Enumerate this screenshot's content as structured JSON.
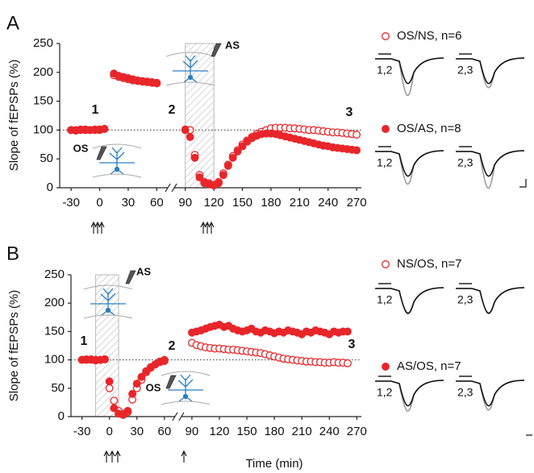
{
  "chart_data": [
    {
      "type": "scatter",
      "panel": "A",
      "ylabel": "Slope of fEPSPs (%)",
      "xlim": [
        -42,
        275
      ],
      "ylim": [
        0,
        250
      ],
      "xticks": [
        -30,
        0,
        30,
        60,
        90,
        120,
        150,
        180,
        210,
        240,
        270
      ],
      "yticks": [
        0,
        50,
        100,
        150,
        200,
        250
      ],
      "hline": 100,
      "highlight_x": [
        90,
        120
      ],
      "annotations": [
        "1",
        "2",
        "3",
        "OS",
        "AS"
      ],
      "trace_labels": [
        "1,2",
        "2,3",
        "1,2",
        "2,3"
      ],
      "x": [
        -30,
        -25,
        -20,
        -15,
        -10,
        -5,
        0,
        5,
        15,
        20,
        25,
        30,
        35,
        40,
        45,
        50,
        55,
        60,
        90,
        95,
        100,
        105,
        110,
        115,
        120,
        125,
        130,
        135,
        140,
        145,
        150,
        155,
        160,
        165,
        170,
        175,
        180,
        185,
        190,
        195,
        200,
        205,
        210,
        215,
        220,
        225,
        230,
        235,
        240,
        245,
        250,
        255,
        260,
        265,
        270
      ],
      "series": [
        {
          "name": "OS/NS,  n=6",
          "color": "#e8262a",
          "filled": false,
          "values": [
            100,
            100,
            101,
            100,
            100,
            101,
            100,
            102,
            195,
            192,
            190,
            188,
            186,
            185,
            184,
            183,
            182,
            181,
            101,
            100,
            57,
            22,
            10,
            8,
            5,
            10,
            25,
            40,
            55,
            65,
            75,
            82,
            88,
            93,
            97,
            100,
            103,
            104,
            104,
            104,
            103,
            103,
            102,
            101,
            100,
            100,
            99,
            98,
            97,
            96,
            96,
            95,
            94,
            93,
            92
          ]
        },
        {
          "name": "OS/AS,  n=8",
          "color": "#e8262a",
          "filled": true,
          "values": [
            100,
            99,
            100,
            101,
            100,
            100,
            101,
            102,
            198,
            194,
            192,
            190,
            188,
            186,
            185,
            184,
            183,
            182,
            100,
            88,
            52,
            18,
            8,
            6,
            4,
            8,
            22,
            38,
            52,
            63,
            72,
            80,
            86,
            90,
            93,
            94,
            94,
            93,
            91,
            89,
            87,
            85,
            83,
            81,
            79,
            77,
            75,
            73,
            72,
            70,
            69,
            68,
            67,
            66,
            65
          ]
        }
      ]
    },
    {
      "type": "scatter",
      "panel": "B",
      "ylabel": "Slope of fEPSPs (%)",
      "xlabel": "Time (min)",
      "xlim": [
        -42,
        275
      ],
      "ylim": [
        0,
        250
      ],
      "xticks": [
        -30,
        0,
        30,
        60,
        90,
        120,
        150,
        180,
        210,
        240,
        270
      ],
      "yticks": [
        0,
        50,
        100,
        150,
        200,
        250
      ],
      "hline": 100,
      "highlight_x": [
        -15,
        10
      ],
      "annotations": [
        "1",
        "2",
        "3",
        "OS",
        "AS"
      ],
      "trace_labels": [
        "1,2",
        "2,3",
        "1,2",
        "2,3"
      ],
      "x": [
        -30,
        -25,
        -20,
        -15,
        -10,
        -5,
        0,
        5,
        10,
        15,
        20,
        25,
        30,
        35,
        40,
        45,
        50,
        55,
        60,
        90,
        95,
        100,
        105,
        110,
        115,
        120,
        125,
        130,
        135,
        140,
        145,
        150,
        155,
        160,
        165,
        170,
        175,
        180,
        185,
        190,
        195,
        200,
        205,
        210,
        215,
        220,
        225,
        230,
        235,
        240,
        245,
        250,
        255,
        260
      ],
      "series": [
        {
          "name": "NS/OS, n=7",
          "color": "#e8262a",
          "filled": false,
          "values": [
            100,
            101,
            100,
            99,
            100,
            101,
            50,
            28,
            10,
            5,
            8,
            30,
            50,
            65,
            78,
            86,
            92,
            97,
            100,
            130,
            126,
            124,
            122,
            121,
            120,
            120,
            119,
            118,
            118,
            117,
            116,
            115,
            114,
            113,
            112,
            110,
            108,
            106,
            104,
            102,
            101,
            100,
            99,
            98,
            97,
            97,
            96,
            96,
            95,
            95,
            96,
            95,
            95,
            94
          ]
        },
        {
          "name": "AS/OS, n=7",
          "color": "#e8262a",
          "filled": true,
          "values": [
            100,
            100,
            101,
            100,
            100,
            101,
            62,
            15,
            5,
            3,
            10,
            40,
            58,
            70,
            80,
            87,
            92,
            96,
            98,
            148,
            150,
            152,
            155,
            158,
            160,
            162,
            158,
            160,
            155,
            152,
            150,
            152,
            155,
            150,
            148,
            152,
            150,
            147,
            150,
            148,
            152,
            150,
            148,
            145,
            150,
            148,
            152,
            150,
            148,
            145,
            150,
            148,
            150,
            150
          ]
        }
      ]
    }
  ]
}
